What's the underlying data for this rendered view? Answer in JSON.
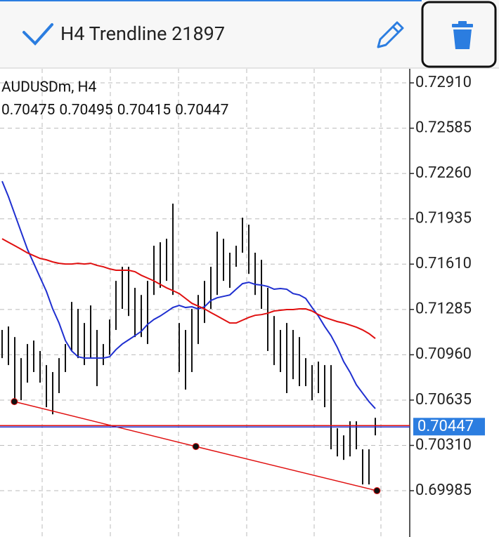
{
  "header": {
    "title": "H4 Trendline 21897"
  },
  "chart_data": {
    "type": "bar-ohlc",
    "symbol": "AUDUSDm, H4",
    "ohlc": [
      0.70475,
      0.70495,
      0.70415,
      0.70447
    ],
    "high": [
      0.71138,
      0.71163,
      0.71087,
      0.70936,
      0.71037,
      0.71062,
      0.70987,
      0.70886,
      0.70836,
      0.70936,
      0.71037,
      0.71339,
      0.71289,
      0.71188,
      0.71314,
      0.71138,
      0.71037,
      0.71213,
      0.7149,
      0.71591,
      0.71591,
      0.7144,
      0.71389,
      0.7149,
      0.71742,
      0.71767,
      0.71792,
      0.72044,
      0.71188,
      0.71138,
      0.71289,
      0.71389,
      0.7149,
      0.71591,
      0.71843,
      0.71792,
      0.71692,
      0.71742,
      0.71943,
      0.71893,
      0.71692,
      0.71641,
      0.7144,
      0.71238,
      0.71138,
      0.71188,
      0.71138,
      0.71087,
      0.70936,
      0.70886,
      0.70911,
      0.70886,
      0.70886,
      0.70433,
      0.70382,
      0.70483,
      0.70483,
      0.70282,
      0.70282,
      0.70508
    ],
    "low": [
      0.70936,
      0.70886,
      0.70609,
      0.70634,
      0.7076,
      0.70836,
      0.7076,
      0.70584,
      0.70533,
      0.70685,
      0.70836,
      0.70987,
      0.70936,
      0.70886,
      0.70936,
      0.70735,
      0.70886,
      0.70961,
      0.71138,
      0.71289,
      0.71238,
      0.71087,
      0.71087,
      0.71037,
      0.71389,
      0.7144,
      0.7149,
      0.71389,
      0.70836,
      0.7071,
      0.70836,
      0.71037,
      0.71188,
      0.71289,
      0.71389,
      0.7149,
      0.7144,
      0.71591,
      0.71692,
      0.7154,
      0.71389,
      0.71289,
      0.70987,
      0.70886,
      0.70836,
      0.70685,
      0.70785,
      0.70735,
      0.70735,
      0.70634,
      0.70685,
      0.70584,
      0.70282,
      0.70231,
      0.70206,
      0.70231,
      0.70282,
      0.7003,
      0.7003,
      0.70382
    ],
    "series": [
      {
        "color": "#1f2fd0",
        "values": [
          0.72205,
          0.72094,
          0.71968,
          0.71842,
          0.71717,
          0.71616,
          0.71515,
          0.71415,
          0.71289,
          0.71188,
          0.71062,
          0.70987,
          0.70946,
          0.70936,
          0.70936,
          0.70936,
          0.70936,
          0.70946,
          0.70997,
          0.71037,
          0.71067,
          0.71097,
          0.71128,
          0.71178,
          0.71213,
          0.71238,
          0.71268,
          0.71299,
          0.71314,
          0.71299,
          0.71304,
          0.71289,
          0.71304,
          0.71349,
          0.71369,
          0.71379,
          0.71389,
          0.7143,
          0.7147,
          0.7148,
          0.71465,
          0.7146,
          0.7145,
          0.7143,
          0.71435,
          0.7143,
          0.71399,
          0.71389,
          0.71364,
          0.71299,
          0.71238,
          0.71163,
          0.71097,
          0.71012,
          0.70911,
          0.70835,
          0.70745,
          0.70684,
          0.70624,
          0.70574
        ]
      },
      {
        "color": "#e01010",
        "values": [
          0.71792,
          0.71767,
          0.71742,
          0.71717,
          0.71691,
          0.71671,
          0.71651,
          0.71641,
          0.71626,
          0.71616,
          0.71611,
          0.71611,
          0.71616,
          0.71611,
          0.71616,
          0.71601,
          0.71591,
          0.71576,
          0.71566,
          0.71566,
          0.71566,
          0.71556,
          0.7153,
          0.7151,
          0.7149,
          0.71465,
          0.7144,
          0.7142,
          0.71399,
          0.71364,
          0.71329,
          0.71309,
          0.71289,
          0.71263,
          0.71238,
          0.71213,
          0.71188,
          0.71188,
          0.71208,
          0.71228,
          0.71243,
          0.71248,
          0.71258,
          0.71274,
          0.71279,
          0.71284,
          0.71284,
          0.71289,
          0.71289,
          0.71274,
          0.71248,
          0.71228,
          0.71213,
          0.71198,
          0.71188,
          0.71173,
          0.71158,
          0.71138,
          0.71112,
          0.71077
        ]
      }
    ],
    "trendline": {
      "color": "#e01010",
      "values": [
        0.70624,
        0.70302,
        0.69985
      ]
    },
    "price": 0.70447,
    "ylim": [
      0.69653,
      0.73011
    ],
    "yticks": [
      {
        "value": 0.7291,
        "label": "0.72910"
      },
      0.72585,
      {
        "value": 0.7226,
        "label": "0.72260"
      },
      0.71935,
      {
        "value": 0.7161,
        "label": "0.71610"
      },
      0.71285,
      {
        "value": 0.7096,
        "label": "0.70960"
      },
      0.70635,
      {
        "value": 0.7031,
        "label": "0.70310"
      },
      0.69985
    ],
    "grid": true
  }
}
